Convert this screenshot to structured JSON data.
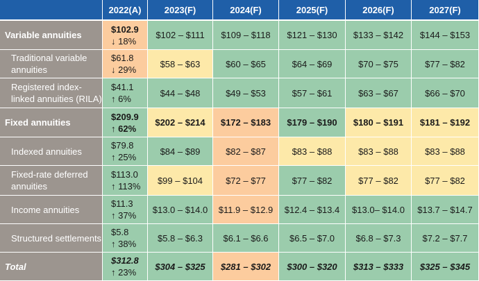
{
  "header": {
    "blank": "",
    "years": [
      "2022(A)",
      "2023(F)",
      "2024(F)",
      "2025(F)",
      "2026(F)",
      "2027(F)"
    ]
  },
  "rows": [
    {
      "label": "Variable annuities",
      "actual": {
        "value": "$102.9",
        "change": "↓ 18%",
        "color": "orange"
      },
      "forecasts": [
        {
          "text": "$102 – $111",
          "color": "green"
        },
        {
          "text": "$109 – $118",
          "color": "green"
        },
        {
          "text": "$121 – $130",
          "color": "green"
        },
        {
          "text": "$133 – $142",
          "color": "green"
        },
        {
          "text": "$144 – $153",
          "color": "green"
        }
      ]
    },
    {
      "label": "Traditional variable annuities",
      "actual": {
        "value": "$61.8",
        "change": "↓ 29%",
        "color": "orange"
      },
      "forecasts": [
        {
          "text": "$58 – $63",
          "color": "yellow"
        },
        {
          "text": "$60 – $65",
          "color": "green"
        },
        {
          "text": "$64 – $69",
          "color": "green"
        },
        {
          "text": "$70 – $75",
          "color": "green"
        },
        {
          "text": "$77 – $82",
          "color": "green"
        }
      ]
    },
    {
      "label": "Registered index-linked annuities (RILA)",
      "actual": {
        "value": "$41.1",
        "change": "↑ 6%",
        "color": "green"
      },
      "forecasts": [
        {
          "text": "$44 – $48",
          "color": "green"
        },
        {
          "text": "$49 – $53",
          "color": "green"
        },
        {
          "text": "$57 – $61",
          "color": "green"
        },
        {
          "text": "$63 – $67",
          "color": "green"
        },
        {
          "text": "$66 – $70",
          "color": "green"
        }
      ]
    },
    {
      "label": "Fixed annuities",
      "actual": {
        "value": "$209.9",
        "change": "↑ 62%",
        "color": "green"
      },
      "forecasts": [
        {
          "text": "$202 – $214",
          "color": "yellow"
        },
        {
          "text": "$172 – $183",
          "color": "orange"
        },
        {
          "text": "$179 – $190",
          "color": "green"
        },
        {
          "text": "$180 – $191",
          "color": "yellow"
        },
        {
          "text": "$181 – $192",
          "color": "yellow"
        }
      ]
    },
    {
      "label": "Indexed annuities",
      "actual": {
        "value": "$79.8",
        "change": "↑ 25%",
        "color": "green"
      },
      "forecasts": [
        {
          "text": "$84 – $89",
          "color": "green"
        },
        {
          "text": "$82 – $87",
          "color": "orange"
        },
        {
          "text": "$83 – $88",
          "color": "yellow"
        },
        {
          "text": "$83 – $88",
          "color": "yellow"
        },
        {
          "text": "$83 – $88",
          "color": "yellow"
        }
      ]
    },
    {
      "label": "Fixed-rate deferred annuities",
      "actual": {
        "value": "$113.0",
        "change": "↑ 113%",
        "color": "green"
      },
      "forecasts": [
        {
          "text": "$99 – $104",
          "color": "yellow"
        },
        {
          "text": "$72 – $77",
          "color": "orange"
        },
        {
          "text": "$77 – $82",
          "color": "green"
        },
        {
          "text": "$77 – $82",
          "color": "yellow"
        },
        {
          "text": "$77 – $82",
          "color": "yellow"
        }
      ]
    },
    {
      "label": "Income annuities",
      "actual": {
        "value": "$11.3",
        "change": "↑ 37%",
        "color": "green"
      },
      "forecasts": [
        {
          "text": "$13.0 – $14.0",
          "color": "green"
        },
        {
          "text": "$11.9 – $12.9",
          "color": "orange"
        },
        {
          "text": "$12.4 – $13.4",
          "color": "green"
        },
        {
          "text": "$13.0– $14.0",
          "color": "green"
        },
        {
          "text": "$13.7 – $14.7",
          "color": "green"
        }
      ]
    },
    {
      "label": "Structured settlements",
      "actual": {
        "value": "$5.8",
        "change": "↑ 38%",
        "color": "green"
      },
      "forecasts": [
        {
          "text": "$5.8 – $6.3",
          "color": "green"
        },
        {
          "text": "$6.1 – $6.6",
          "color": "green"
        },
        {
          "text": "$6.5 – $7.0",
          "color": "green"
        },
        {
          "text": "$6.8 – $7.3",
          "color": "green"
        },
        {
          "text": "$7.2 – $7.7",
          "color": "green"
        }
      ]
    },
    {
      "label": "Total",
      "actual": {
        "value": "$312.8",
        "change": "↑ 23%",
        "color": "green"
      },
      "forecasts": [
        {
          "text": "$304 – $325",
          "color": "green"
        },
        {
          "text": "$281 – $302",
          "color": "orange"
        },
        {
          "text": "$300 – $320",
          "color": "green"
        },
        {
          "text": "$313 – $333",
          "color": "green"
        },
        {
          "text": "$325 – $345",
          "color": "green"
        }
      ]
    }
  ],
  "colors": {
    "header": "#1f5fa8",
    "label": "#9c958f",
    "green": "#9bccac",
    "yellow": "#fde9a9",
    "orange": "#fccc9e"
  }
}
